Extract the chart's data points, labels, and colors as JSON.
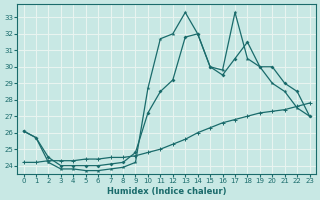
{
  "bg_color": "#c8e8e4",
  "grid_color": "#e8f4f0",
  "line_color": "#1a6b6b",
  "xlabel": "Humidex (Indice chaleur)",
  "xlim": [
    -0.5,
    23.5
  ],
  "ylim": [
    23.5,
    33.8
  ],
  "xticks": [
    0,
    1,
    2,
    3,
    4,
    5,
    6,
    7,
    8,
    9,
    10,
    11,
    12,
    13,
    14,
    15,
    16,
    17,
    18,
    19,
    20,
    21,
    22,
    23
  ],
  "yticks": [
    24,
    25,
    26,
    27,
    28,
    29,
    30,
    31,
    32,
    33
  ],
  "curve_spiky_x": [
    0,
    1,
    2,
    3,
    4,
    5,
    6,
    7,
    8,
    9,
    10,
    11,
    12,
    13,
    14,
    15,
    16,
    17,
    18,
    19,
    20,
    21,
    22,
    23
  ],
  "curve_spiky_y": [
    26.1,
    25.7,
    24.2,
    23.8,
    23.8,
    23.7,
    23.7,
    23.8,
    23.9,
    24.2,
    28.7,
    31.7,
    32.0,
    33.3,
    32.0,
    30.0,
    29.8,
    33.3,
    30.5,
    30.0,
    29.0,
    28.5,
    27.5,
    27.0
  ],
  "curve_smooth_x": [
    0,
    1,
    2,
    3,
    4,
    5,
    6,
    7,
    8,
    9,
    10,
    11,
    12,
    13,
    14,
    15,
    16,
    17,
    18,
    19,
    20,
    21,
    22,
    23
  ],
  "curve_smooth_y": [
    26.1,
    25.7,
    24.5,
    24.0,
    24.0,
    24.0,
    24.0,
    24.1,
    24.2,
    24.8,
    27.2,
    28.5,
    29.2,
    31.8,
    32.0,
    30.0,
    29.5,
    30.5,
    31.5,
    30.0,
    30.0,
    29.0,
    28.5,
    27.0
  ],
  "curve_diag_x": [
    0,
    1,
    2,
    3,
    4,
    5,
    6,
    7,
    8,
    9,
    10,
    11,
    12,
    13,
    14,
    15,
    16,
    17,
    18,
    19,
    20,
    21,
    22,
    23
  ],
  "curve_diag_y": [
    24.2,
    24.2,
    24.3,
    24.3,
    24.3,
    24.4,
    24.4,
    24.5,
    24.5,
    24.6,
    24.8,
    25.0,
    25.3,
    25.6,
    26.0,
    26.3,
    26.6,
    26.8,
    27.0,
    27.2,
    27.3,
    27.4,
    27.6,
    27.8
  ]
}
